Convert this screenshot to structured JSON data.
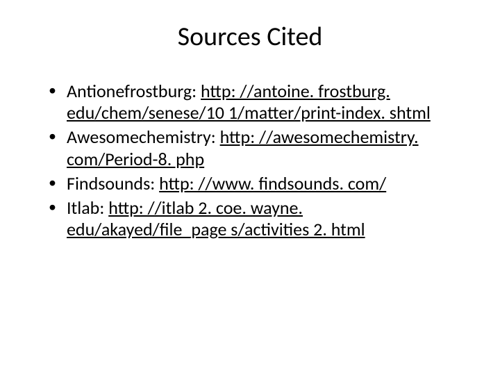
{
  "slide": {
    "title": "Sources Cited",
    "title_fontsize": 38,
    "body_fontsize": 26,
    "background_color": "#ffffff",
    "text_color": "#000000",
    "link_color": "#000000",
    "items": [
      {
        "label": "Antionefrostburg: ",
        "url": "http: //antoine. frostburg. edu/chem/senese/10 1/matter/print-index. shtml"
      },
      {
        "label": "Awesomechemistry: ",
        "url": "http: //awesomechemistry. com/Period-8. php"
      },
      {
        "label": "Findsounds: ",
        "url": "http: //www. findsounds. com/"
      },
      {
        "label": "Itlab: ",
        "url": "http: //itlab 2. coe. wayne. edu/akayed/file_page s/activities 2. html"
      }
    ]
  }
}
